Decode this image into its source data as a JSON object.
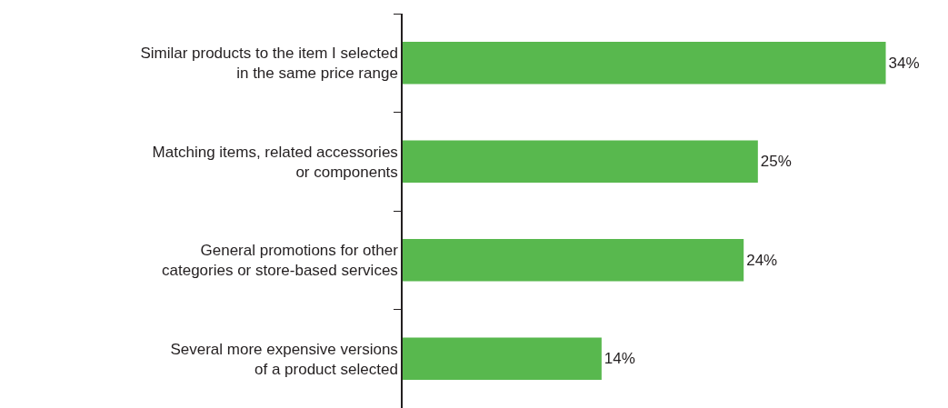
{
  "chart_data": {
    "type": "bar",
    "orientation": "horizontal",
    "categories": [
      "Similar products to the item I selected\nin the same price range",
      "Matching items, related accessories\nor components",
      "General promotions for other\ncategories or store-based services",
      "Several more expensive versions\nof a product selected"
    ],
    "values": [
      34,
      25,
      24,
      14
    ],
    "value_labels": [
      "34%",
      "25%",
      "24%",
      "14%"
    ],
    "color": "#58b84e"
  }
}
